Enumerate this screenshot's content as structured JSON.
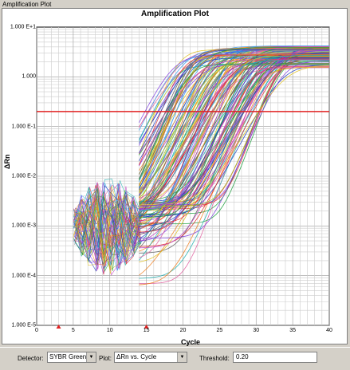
{
  "window": {
    "title": "Amplification Plot"
  },
  "chart_data": {
    "type": "line",
    "title": "Amplification Plot",
    "xlabel": "Cycle",
    "ylabel": "ΔRn",
    "x_ticks": [
      0,
      5,
      10,
      15,
      20,
      25,
      30,
      35,
      40
    ],
    "y_tick_labels": [
      "1.000 E+1",
      "1.000",
      "1.000 E-1",
      "1.000 E-2",
      "1.000 E-3",
      "1.000 E-4",
      "1.000 E-5"
    ],
    "xlim": [
      0,
      40
    ],
    "ylim": [
      1e-05,
      10
    ],
    "y_scale": "log",
    "grid": true,
    "threshold": 0.2,
    "threshold_color": "#e02020",
    "series_colors": [
      "#e03030",
      "#2040c0",
      "#20a040",
      "#e0c020",
      "#c040c0",
      "#20b0b0",
      "#f08020",
      "#8040e0",
      "#40a0f0",
      "#a0c020",
      "#e060a0",
      "#606060"
    ],
    "early_noise": {
      "cycles": [
        5,
        14
      ],
      "range": [
        0.0001,
        0.01
      ]
    },
    "late_curves": {
      "ct_range": [
        18,
        34
      ],
      "plateau_range": [
        1.5,
        4.2
      ]
    }
  },
  "toolbar": {
    "detector_label": "Detector:",
    "detector_value": "SYBR Green",
    "plot_label": "Plot:",
    "plot_value": "ΔRn vs. Cycle",
    "threshold_label": "Threshold:",
    "threshold_value": "0.20"
  }
}
